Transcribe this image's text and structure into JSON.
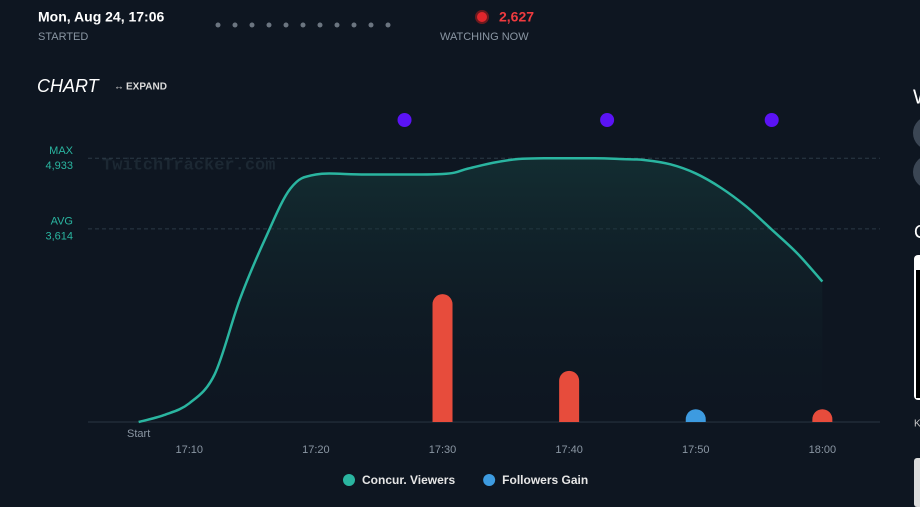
{
  "header": {
    "started_value": "Mon, Aug 24, 17:06",
    "started_label": "STARTED",
    "watching_value": "2,627",
    "watching_label": "WATCHING NOW"
  },
  "chart_heading": "CHART",
  "expand": "EXPAND",
  "watermark": "TwitchTracker.com",
  "side": {
    "letters": [
      "W",
      "C",
      "K"
    ]
  },
  "chart_data": {
    "type": "line",
    "max": {
      "label": "MAX",
      "value": {
        "value": 4933,
        "label": "4,933"
      }
    },
    "avg": {
      "label": "AVG",
      "value": {
        "value": 3614,
        "label": "3,614"
      }
    },
    "start_label": "Start",
    "x": [
      "17:06",
      "17:08",
      "17:10",
      "17:12",
      "17:14",
      "17:16",
      "17:18",
      "17:20",
      "17:24",
      "17:30",
      "17:32",
      "17:34",
      "17:36",
      "17:38",
      "17:42",
      "17:44",
      "17:46",
      "17:48",
      "17:50",
      "17:52",
      "17:54",
      "17:56",
      "17:58",
      "18:00"
    ],
    "series": [
      {
        "name": "Concur. Viewers",
        "color": "#2ab5a0",
        "values": [
          0,
          130,
          350,
          890,
          2300,
          3430,
          4370,
          4630,
          4630,
          4640,
          4740,
          4850,
          4920,
          4933,
          4933,
          4920,
          4900,
          4820,
          4650,
          4380,
          4030,
          3600,
          3160,
          2627
        ]
      }
    ],
    "bars": {
      "x": [
        "17:30",
        "17:40",
        "17:50",
        "18:00"
      ],
      "y2lim": [
        0,
        23
      ],
      "series": [
        {
          "color": "#e74c3c",
          "values": [
            10,
            4,
            null,
            1
          ]
        },
        {
          "name": "Followers Gain",
          "color": "#3d9be0",
          "values": [
            null,
            null,
            1,
            null
          ]
        }
      ]
    },
    "events": {
      "x": [
        "17:27",
        "17:43",
        "17:56"
      ],
      "color": "#5b13f5"
    },
    "xlim": [
      "17:02",
      "18:04"
    ],
    "ylim": [
      0,
      5500
    ],
    "xticks": [
      "17:10",
      "17:20",
      "17:30",
      "17:40",
      "17:50",
      "18:00"
    ]
  }
}
